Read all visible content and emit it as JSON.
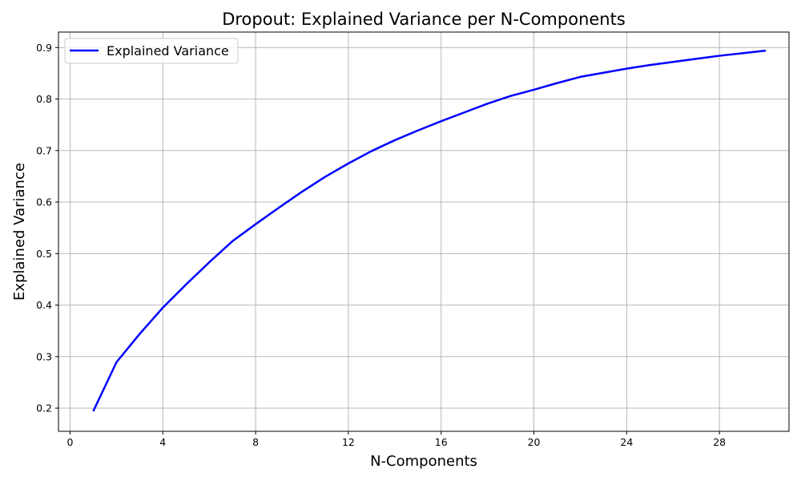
{
  "chart_data": {
    "type": "line",
    "title": "Dropout: Explained Variance per N-Components",
    "xlabel": "N-Components",
    "ylabel": "Explained Variance",
    "xlim": [
      -0.5,
      31
    ],
    "ylim": [
      0.155,
      0.93
    ],
    "x_ticks": [
      0,
      4,
      8,
      12,
      16,
      20,
      24,
      28
    ],
    "y_ticks": [
      0.2,
      0.3,
      0.4,
      0.5,
      0.6,
      0.7,
      0.8,
      0.9
    ],
    "grid": true,
    "legend_position": "top-left",
    "series": [
      {
        "name": "Explained Variance",
        "color": "#0000ff",
        "x": [
          1,
          2,
          3,
          4,
          5,
          6,
          7,
          8,
          9,
          10,
          11,
          12,
          13,
          14,
          15,
          16,
          17,
          18,
          19,
          20,
          21,
          22,
          23,
          24,
          25,
          26,
          27,
          28,
          29,
          30
        ],
        "y": [
          0.194,
          0.289,
          0.344,
          0.395,
          0.44,
          0.483,
          0.524,
          0.557,
          0.589,
          0.62,
          0.649,
          0.675,
          0.699,
          0.72,
          0.739,
          0.757,
          0.774,
          0.791,
          0.806,
          0.818,
          0.831,
          0.843,
          0.851,
          0.859,
          0.866,
          0.872,
          0.878,
          0.884,
          0.889,
          0.894
        ]
      }
    ]
  }
}
